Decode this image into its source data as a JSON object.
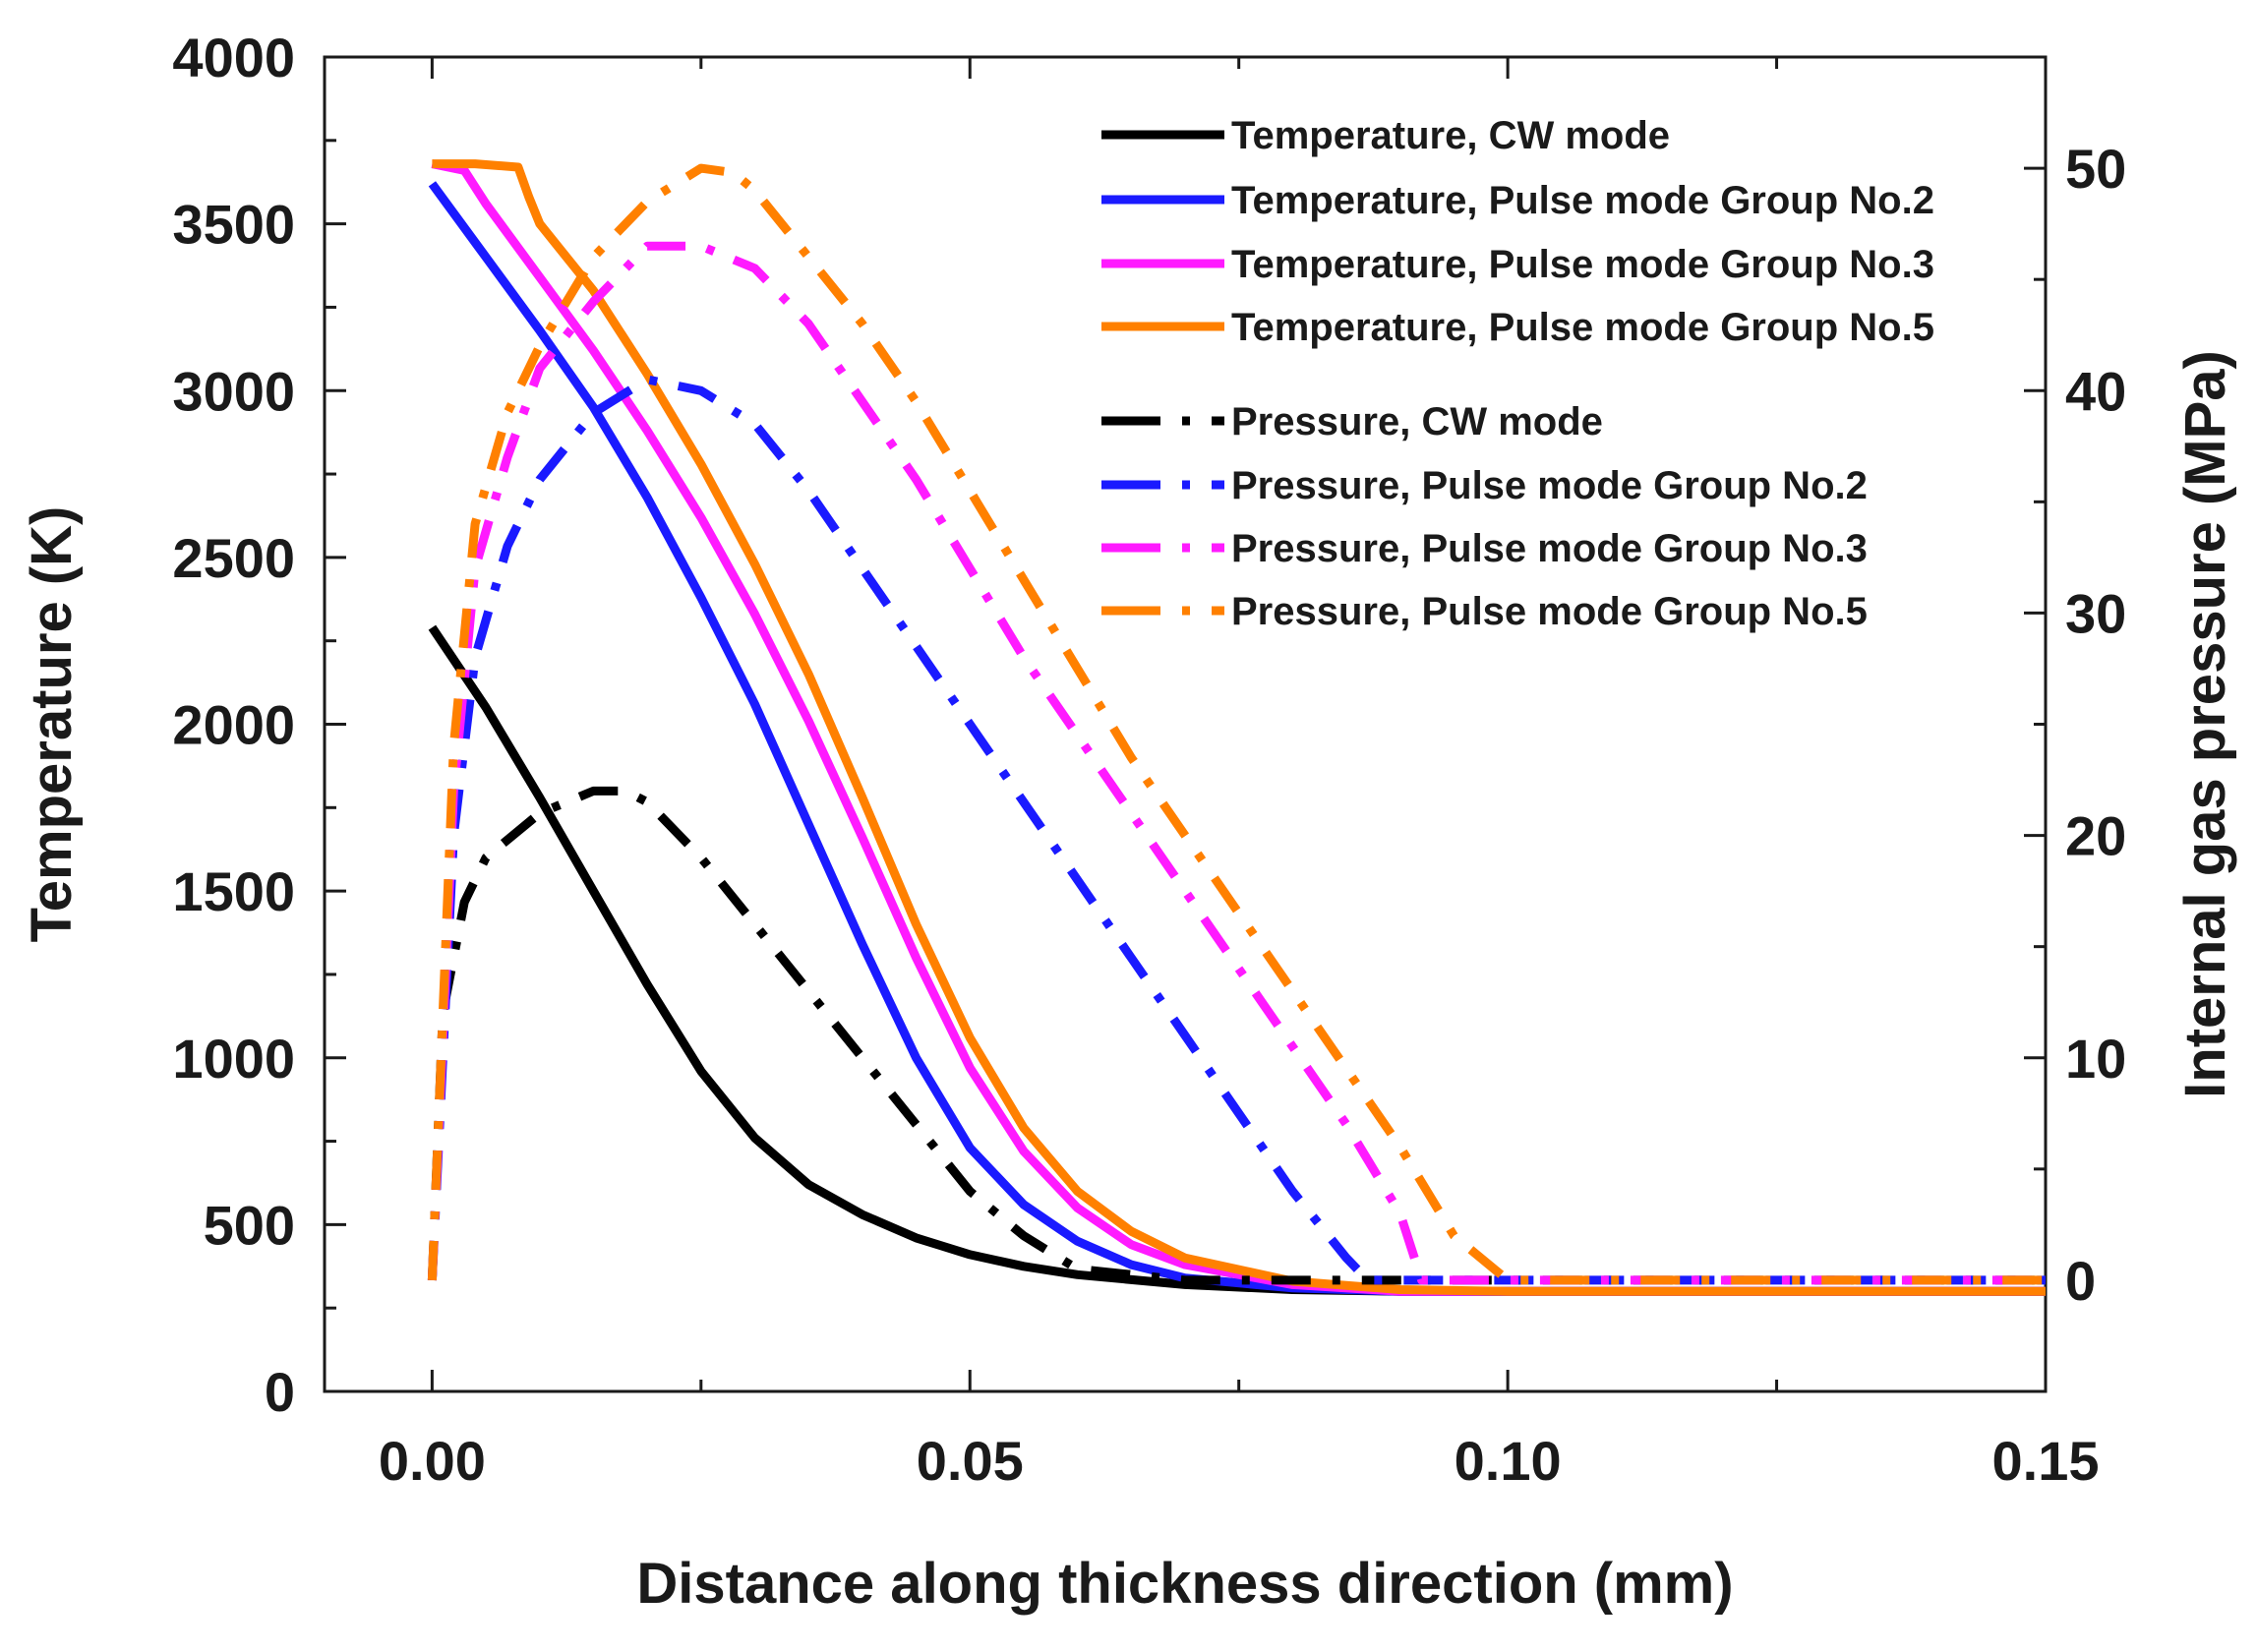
{
  "chart_data": {
    "type": "line",
    "xlabel": "Distance along thickness direction (mm)",
    "ylabel_left": "Temperature (K)",
    "ylabel_right": "Internal gas pressure (MPa)",
    "xlim": [
      -0.01,
      0.15
    ],
    "ylim_left": [
      0,
      4000
    ],
    "ylim_right": [
      -5,
      55
    ],
    "x_ticks": [
      0.0,
      0.05,
      0.1,
      0.15
    ],
    "x_tick_labels": [
      "0.00",
      "0.05",
      "0.10",
      "0.15"
    ],
    "y_left_ticks": [
      0,
      500,
      1000,
      1500,
      2000,
      2500,
      3000,
      3500,
      4000
    ],
    "y_left_tick_labels": [
      "0",
      "500",
      "1000",
      "1500",
      "2000",
      "2500",
      "3000",
      "3500",
      "4000"
    ],
    "y_right_ticks": [
      0,
      10,
      20,
      30,
      40,
      50
    ],
    "y_right_tick_labels": [
      "0",
      "10",
      "20",
      "30",
      "40",
      "50"
    ],
    "grid": false,
    "legend_position": "top-right",
    "colors": {
      "cw": "#000000",
      "group2": "#1a1aff",
      "group3": "#ff1aff",
      "group5": "#ff8000"
    },
    "series": [
      {
        "name": "Temperature, CW mode",
        "axis": "left",
        "style": "solid",
        "color": "#000000",
        "x": [
          0,
          0.005,
          0.01,
          0.015,
          0.02,
          0.025,
          0.03,
          0.035,
          0.04,
          0.045,
          0.05,
          0.055,
          0.06,
          0.07,
          0.08,
          0.09,
          0.1,
          0.12,
          0.15
        ],
        "y": [
          2290,
          2050,
          1780,
          1500,
          1220,
          960,
          760,
          620,
          530,
          460,
          410,
          375,
          350,
          320,
          305,
          300,
          300,
          300,
          300
        ]
      },
      {
        "name": "Temperature, Pulse mode Group No.2",
        "axis": "left",
        "style": "solid",
        "color": "#1a1aff",
        "x": [
          0,
          0.005,
          0.01,
          0.015,
          0.02,
          0.025,
          0.03,
          0.035,
          0.04,
          0.045,
          0.05,
          0.055,
          0.06,
          0.065,
          0.07,
          0.08,
          0.09,
          0.1,
          0.12,
          0.15
        ],
        "y": [
          3620,
          3400,
          3180,
          2950,
          2680,
          2380,
          2060,
          1700,
          1340,
          1000,
          730,
          560,
          450,
          380,
          340,
          310,
          300,
          300,
          300,
          300
        ]
      },
      {
        "name": "Temperature, Pulse mode Group No.3",
        "axis": "left",
        "style": "solid",
        "color": "#ff1aff",
        "x": [
          0,
          0.003,
          0.005,
          0.01,
          0.015,
          0.02,
          0.025,
          0.03,
          0.035,
          0.04,
          0.045,
          0.05,
          0.055,
          0.06,
          0.065,
          0.07,
          0.08,
          0.09,
          0.1,
          0.12,
          0.15
        ],
        "y": [
          3680,
          3660,
          3560,
          3340,
          3120,
          2880,
          2620,
          2330,
          2010,
          1660,
          1300,
          970,
          720,
          550,
          440,
          380,
          320,
          300,
          300,
          300,
          300
        ]
      },
      {
        "name": "Temperature, Pulse mode Group No.5",
        "axis": "left",
        "style": "solid",
        "color": "#ff8000",
        "x": [
          0,
          0.004,
          0.008,
          0.009,
          0.01,
          0.015,
          0.02,
          0.025,
          0.03,
          0.035,
          0.04,
          0.045,
          0.05,
          0.055,
          0.06,
          0.065,
          0.07,
          0.08,
          0.09,
          0.1,
          0.12,
          0.15
        ],
        "y": [
          3680,
          3680,
          3670,
          3580,
          3500,
          3300,
          3050,
          2780,
          2480,
          2150,
          1780,
          1400,
          1060,
          790,
          600,
          480,
          400,
          330,
          305,
          300,
          300,
          300
        ]
      },
      {
        "name": "Pressure, CW mode",
        "axis": "right",
        "style": "dashdot",
        "color": "#000000",
        "x": [
          0,
          0.001,
          0.003,
          0.005,
          0.01,
          0.015,
          0.018,
          0.02,
          0.025,
          0.03,
          0.035,
          0.04,
          0.045,
          0.05,
          0.055,
          0.06,
          0.07,
          0.08,
          0.1,
          0.12,
          0.15
        ],
        "y": [
          0,
          12,
          17,
          19,
          21,
          22,
          22,
          21.5,
          19,
          16,
          13,
          10,
          7,
          4,
          2,
          0.5,
          0,
          0,
          0,
          0,
          0
        ]
      },
      {
        "name": "Pressure, Pulse mode Group No.2",
        "axis": "right",
        "style": "dashdot",
        "color": "#1a1aff",
        "x": [
          0,
          0.002,
          0.004,
          0.007,
          0.01,
          0.015,
          0.02,
          0.025,
          0.03,
          0.035,
          0.04,
          0.045,
          0.05,
          0.055,
          0.06,
          0.065,
          0.07,
          0.075,
          0.08,
          0.085,
          0.087,
          0.1,
          0.12,
          0.15
        ],
        "y": [
          0,
          20,
          28,
          33,
          36,
          39,
          40.5,
          40,
          38.5,
          35.5,
          32,
          28.5,
          25,
          21.5,
          18,
          14.5,
          11,
          7.5,
          4,
          1,
          0,
          0,
          0,
          0
        ]
      },
      {
        "name": "Pressure, Pulse mode Group No.3",
        "axis": "right",
        "style": "dashdot",
        "color": "#ff1aff",
        "x": [
          0,
          0.002,
          0.004,
          0.007,
          0.01,
          0.015,
          0.02,
          0.025,
          0.03,
          0.035,
          0.04,
          0.045,
          0.05,
          0.055,
          0.06,
          0.065,
          0.07,
          0.075,
          0.08,
          0.085,
          0.09,
          0.092,
          0.1,
          0.12,
          0.15
        ],
        "y": [
          0,
          22,
          32,
          37,
          41,
          44,
          46.5,
          46.5,
          45.5,
          43,
          39.5,
          36,
          32,
          28,
          24.5,
          21,
          17.5,
          14,
          10.5,
          7,
          3,
          0,
          0,
          0,
          0
        ]
      },
      {
        "name": "Pressure, Pulse mode Group No.5",
        "axis": "right",
        "style": "dashdot",
        "color": "#ff8000",
        "x": [
          0,
          0.002,
          0.004,
          0.007,
          0.01,
          0.015,
          0.02,
          0.025,
          0.028,
          0.03,
          0.035,
          0.04,
          0.045,
          0.05,
          0.055,
          0.06,
          0.065,
          0.07,
          0.075,
          0.08,
          0.085,
          0.09,
          0.095,
          0.1,
          0.12,
          0.15
        ],
        "y": [
          0,
          24,
          34,
          39,
          42,
          46,
          48.5,
          50,
          49.8,
          49,
          46,
          43,
          39.5,
          35.5,
          31.5,
          27.5,
          23.5,
          20,
          16.5,
          13,
          9.5,
          6,
          2,
          0,
          0,
          0
        ]
      }
    ]
  }
}
